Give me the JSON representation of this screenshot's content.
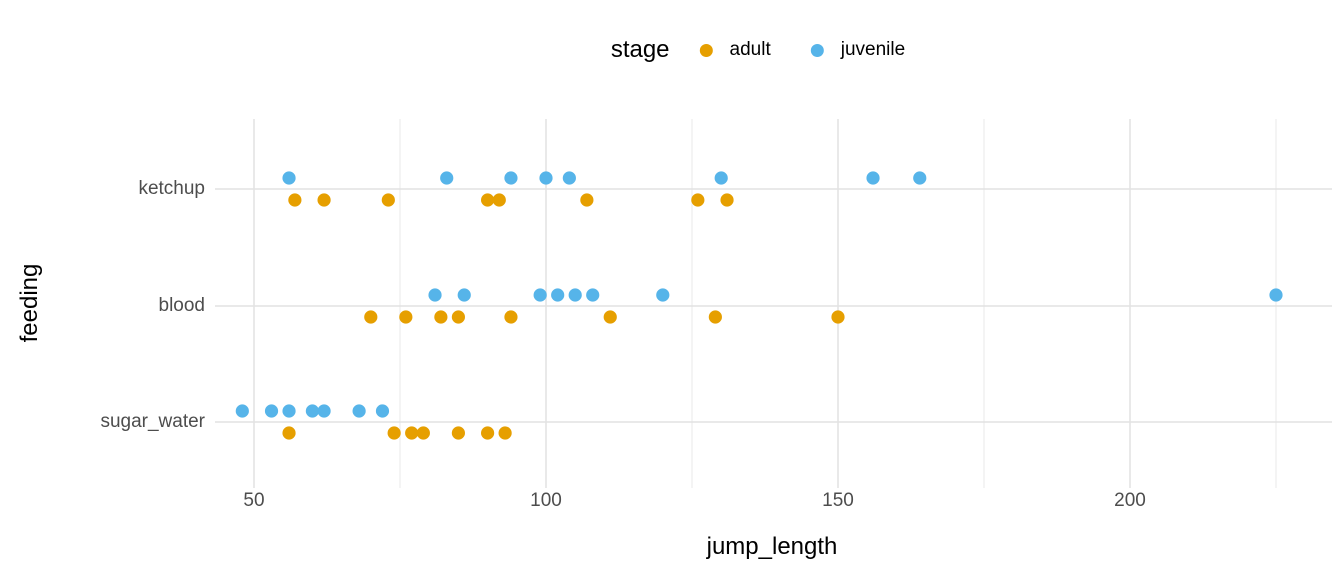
{
  "legend": {
    "title": "stage",
    "items": [
      {
        "label": "adult",
        "color": "#E69F00"
      },
      {
        "label": "juvenile",
        "color": "#56B4E9"
      }
    ]
  },
  "colors": {
    "adult": "#E69F00",
    "juvenile": "#56B4E9",
    "grid_major": "#e2e2e2",
    "grid_minor": "#ececec",
    "tick_text": "#4d4d4d",
    "title_text": "#000000",
    "background": "#ffffff"
  },
  "chart_data": {
    "type": "scatter",
    "subtype": "horizontal-strip-dodged",
    "title": "",
    "xlabel": "jump_length",
    "ylabel": "feeding",
    "categories": [
      "ketchup",
      "blood",
      "sugar_water"
    ],
    "x_ticks_major": [
      50,
      100,
      150,
      200
    ],
    "x_ticks_minor": [
      75,
      125,
      175,
      225
    ],
    "xlim": [
      43,
      237
    ],
    "grid": "major-and-minor-x, major-y",
    "legend_position": "top-center",
    "series": [
      {
        "name": "adult",
        "color": "#E69F00",
        "points": {
          "ketchup": [
            57,
            62,
            73,
            90,
            92,
            107,
            126,
            131
          ],
          "blood": [
            70,
            76,
            82,
            85,
            94,
            111,
            129,
            150
          ],
          "sugar_water": [
            56,
            74,
            77,
            79,
            85,
            90,
            93
          ]
        }
      },
      {
        "name": "juvenile",
        "color": "#56B4E9",
        "points": {
          "ketchup": [
            56,
            83,
            94,
            100,
            104,
            130,
            156,
            164
          ],
          "blood": [
            81,
            86,
            99,
            102,
            105,
            108,
            120,
            225
          ],
          "sugar_water": [
            48,
            53,
            56,
            60,
            62,
            68,
            72
          ]
        }
      }
    ]
  }
}
